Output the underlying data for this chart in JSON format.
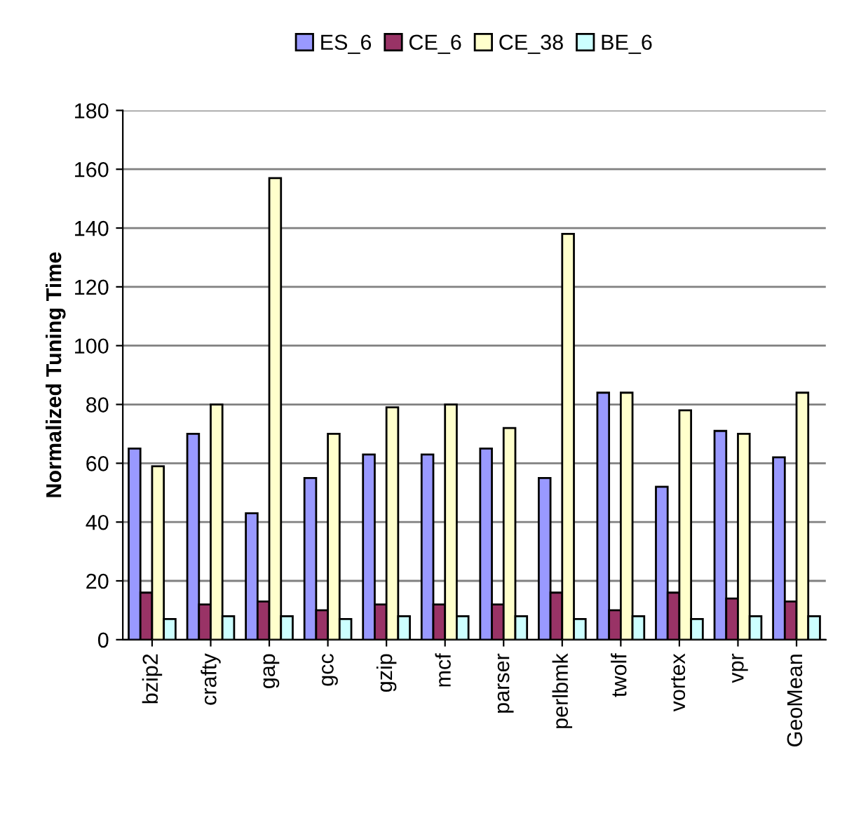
{
  "chart_data": {
    "type": "bar",
    "ylabel": "Normalized Tuning Time",
    "categories": [
      "bzip2",
      "crafty",
      "gap",
      "gcc",
      "gzip",
      "mcf",
      "parser",
      "perlbmk",
      "twolf",
      "vortex",
      "vpr",
      "GeoMean"
    ],
    "series": [
      {
        "name": "ES_6",
        "color": "#9999ff",
        "values": [
          65,
          70,
          43,
          55,
          63,
          63,
          65,
          55,
          84,
          52,
          71,
          62
        ]
      },
      {
        "name": "CE_6",
        "color": "#993366",
        "values": [
          16,
          12,
          13,
          10,
          12,
          12,
          12,
          16,
          10,
          16,
          14,
          13
        ]
      },
      {
        "name": "CE_38",
        "color": "#ffffcc",
        "values": [
          59,
          80,
          157,
          70,
          79,
          80,
          72,
          138,
          84,
          78,
          70,
          84
        ]
      },
      {
        "name": "BE_6",
        "color": "#ccffff",
        "values": [
          7,
          8,
          8,
          7,
          8,
          8,
          8,
          7,
          8,
          7,
          8,
          8
        ]
      }
    ],
    "ylim": [
      0,
      180
    ],
    "yticks": [
      0,
      20,
      40,
      60,
      80,
      100,
      120,
      140,
      160,
      180
    ],
    "grid": "y",
    "legend": "top"
  }
}
